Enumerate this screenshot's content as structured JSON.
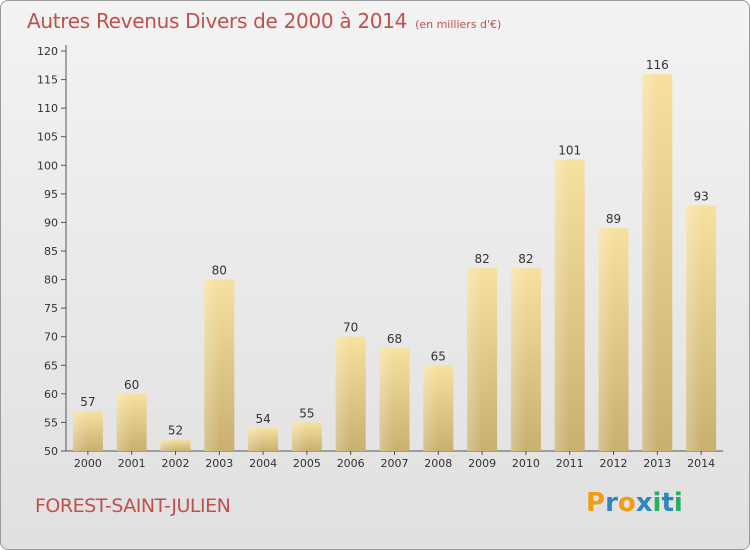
{
  "title": "Autres Revenus Divers de 2000 à 2014",
  "unit": "(en milliers d'€)",
  "commune": "FOREST-SAINT-JULIEN",
  "logo": {
    "letters": [
      "P",
      "r",
      "o",
      "x",
      "i",
      "t",
      "i"
    ],
    "colors": [
      "#f39c12",
      "#2e86c1",
      "#f39c12",
      "#2e86c1",
      "#27ae60",
      "#2e86c1",
      "#27ae60"
    ]
  },
  "colors": {
    "title": "#c0504d",
    "bar_light": "#f7e1a0",
    "bar_dark": "#c9b070"
  },
  "chart_data": {
    "type": "bar",
    "categories": [
      "2000",
      "2001",
      "2002",
      "2003",
      "2004",
      "2005",
      "2006",
      "2007",
      "2008",
      "2009",
      "2010",
      "2011",
      "2012",
      "2013",
      "2014"
    ],
    "values": [
      57,
      60,
      52,
      80,
      54,
      55,
      70,
      68,
      65,
      82,
      82,
      101,
      89,
      116,
      93
    ],
    "title": "Autres Revenus Divers de 2000 à 2014",
    "xlabel": "",
    "ylabel": "",
    "ylim": [
      50,
      120
    ],
    "yticks": [
      50,
      55,
      60,
      65,
      70,
      75,
      80,
      85,
      90,
      95,
      100,
      105,
      110,
      115,
      120
    ],
    "grid": false,
    "data_labels": true
  }
}
